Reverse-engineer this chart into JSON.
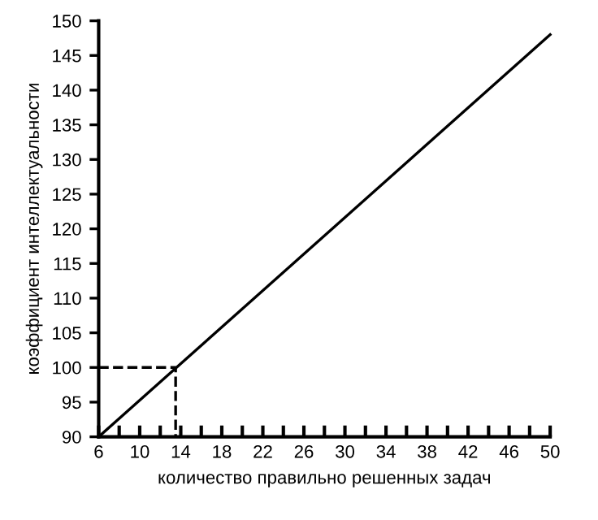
{
  "chart_data": {
    "type": "line",
    "xlabel": "количество правильно решенных задач",
    "ylabel": "коэффициент интеллектуальности",
    "series": [
      {
        "x": [
          6,
          50
        ],
        "values": [
          90,
          148
        ],
        "color": "#000000",
        "line_style": "solid"
      },
      {
        "x": [
          6,
          13.5,
          13.5
        ],
        "values": [
          100,
          100,
          90
        ],
        "color": "#000000",
        "line_style": "dashed"
      }
    ],
    "xlim": [
      6,
      50
    ],
    "ylim": [
      90,
      150
    ],
    "xticks": [
      6,
      {
        "value": 8,
        "label": null
      },
      10,
      {
        "value": 12,
        "label": null
      },
      14,
      {
        "value": 16,
        "label": null
      },
      18,
      {
        "value": 20,
        "label": null
      },
      22,
      {
        "value": 24,
        "label": null
      },
      26,
      {
        "value": 28,
        "label": null
      },
      30,
      {
        "value": 32,
        "label": null
      },
      34,
      {
        "value": 36,
        "label": null
      },
      38,
      {
        "value": 40,
        "label": null
      },
      42,
      {
        "value": 44,
        "label": null
      },
      46,
      {
        "value": 48,
        "label": null
      },
      50
    ],
    "yticks": [
      90,
      95,
      100,
      105,
      110,
      115,
      120,
      125,
      130,
      135,
      140,
      145,
      150
    ],
    "grid": false,
    "legend": false,
    "marker": "none"
  }
}
